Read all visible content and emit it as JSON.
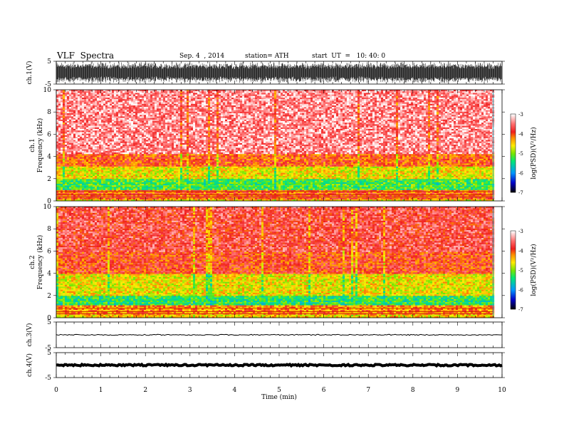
{
  "header": {
    "title": "VLF  Spectra",
    "date": "Sep. 4  , 2014",
    "station": "station= ATH",
    "start": "start  UT  =   10: 40: 0"
  },
  "chart_data": {
    "type": "heatmap",
    "xlabel": "Time  (min)",
    "xlim": [
      0,
      10
    ],
    "xticks": [
      0,
      1,
      2,
      3,
      4,
      5,
      6,
      7,
      8,
      9,
      10
    ],
    "data_end_min": 9.8,
    "panels": [
      {
        "name": "ch1-waveform",
        "kind": "waveform",
        "ylabel": "ch.1(V)",
        "ylim": [
          -5,
          5
        ],
        "yticks": [
          -5,
          5
        ],
        "amplitude_v": 4.8,
        "color": "#000000"
      },
      {
        "name": "ch1-spectrogram",
        "kind": "spectrogram",
        "ylabel_channel": "ch.1",
        "ylabel": "Frequency  (kHz)",
        "ylim": [
          0,
          10
        ],
        "yticks": [
          0,
          2,
          4,
          6,
          8,
          10
        ],
        "colorbar": {
          "label": "log(PSD)(V²/Hz)",
          "range": [
            -7,
            -3
          ],
          "ticks": [
            -3,
            -4,
            -5,
            -6,
            -7
          ]
        },
        "bands_khz": [
          {
            "from": 0,
            "to": 0.25,
            "level": -4.6
          },
          {
            "from": 0.25,
            "to": 1.0,
            "level": -4.0
          },
          {
            "from": 1.0,
            "to": 2.0,
            "level": -5.2
          },
          {
            "from": 2.0,
            "to": 3.2,
            "level": -4.6
          },
          {
            "from": 3.2,
            "to": 4.3,
            "level": -4.0
          },
          {
            "from": 4.3,
            "to": 10,
            "level": -3.4
          }
        ]
      },
      {
        "name": "ch2-spectrogram",
        "kind": "spectrogram",
        "ylabel_channel": "ch.2",
        "ylabel": "Frequency  (kHz)",
        "ylim": [
          0,
          10
        ],
        "yticks": [
          0,
          2,
          4,
          6,
          8,
          10
        ],
        "colorbar": {
          "label": "log(PSD)(V²/Hz)",
          "range": [
            -7,
            -3
          ],
          "ticks": [
            -3,
            -4,
            -5,
            -6,
            -7
          ]
        },
        "bands_khz": [
          {
            "from": 0,
            "to": 0.3,
            "level": -4.5
          },
          {
            "from": 0.3,
            "to": 1.2,
            "level": -4.2
          },
          {
            "from": 1.2,
            "to": 2.0,
            "level": -5.3
          },
          {
            "from": 2.0,
            "to": 4.0,
            "level": -4.6
          },
          {
            "from": 4.0,
            "to": 6.0,
            "level": -3.9
          },
          {
            "from": 6.0,
            "to": 10,
            "level": -3.7
          }
        ]
      },
      {
        "name": "ch3-waveform",
        "kind": "waveform",
        "ylabel": "ch.3(V)",
        "ylim": [
          -5,
          5
        ],
        "yticks": [
          -5,
          5
        ],
        "amplitude_v": 0.2,
        "color": "#000000"
      },
      {
        "name": "ch4-waveform",
        "kind": "waveform",
        "ylabel": "ch.4(V)",
        "ylim": [
          -5,
          5
        ],
        "yticks": [
          -5,
          5
        ],
        "amplitude_v": 0.3,
        "color": "#000000"
      }
    ]
  }
}
